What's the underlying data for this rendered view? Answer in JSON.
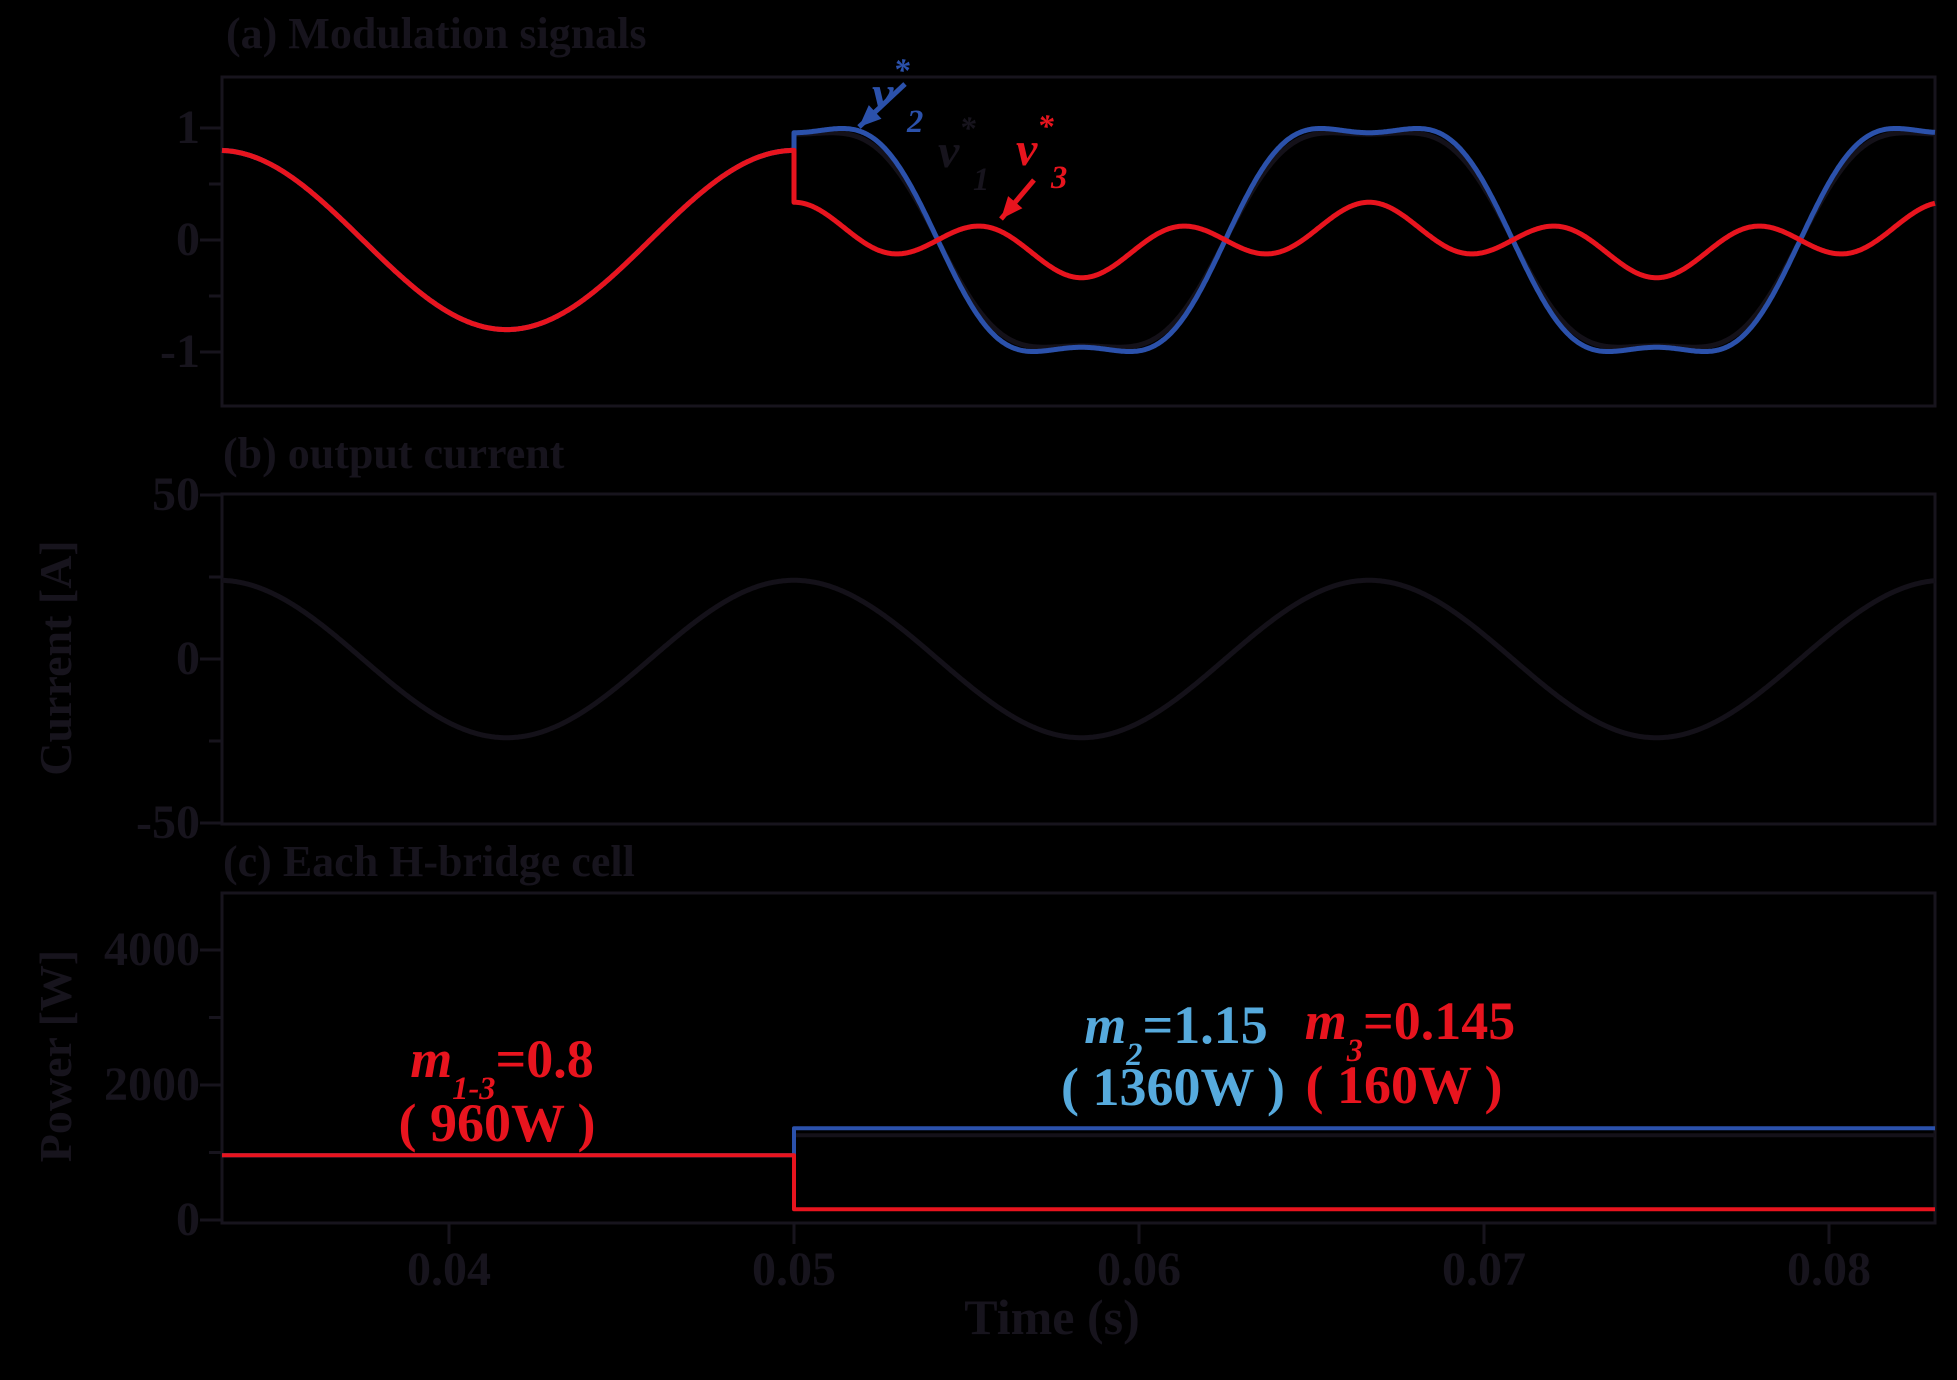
{
  "colors": {
    "background": "#000000",
    "ink": "#17141d",
    "near_black": "#141119",
    "red": "#e8141e",
    "blue": "#2b51ab",
    "light_blue": "#56aadd"
  },
  "panel_a": {
    "title": "(a) Modulation signals",
    "labels": {
      "v2": {
        "base": "v",
        "star": "*",
        "sub": "2"
      },
      "v1": {
        "base": "v",
        "star": "*",
        "sub": "1"
      },
      "v3": {
        "base": "v",
        "star": "*",
        "sub": "3"
      }
    }
  },
  "panel_b": {
    "title": "(b) output current",
    "ylabel": "Current [A]"
  },
  "panel_c": {
    "title": "(c) Each H-bridge cell",
    "ylabel": "Power [W]",
    "xlabel": "Time (s)",
    "ann_m13": {
      "var": "m",
      "sub": "1-3",
      "value": "=0.8",
      "power": "( 960W )"
    },
    "ann_m2": {
      "var": "m",
      "sub": "2",
      "value": "=1.15",
      "power": "( 1360W )"
    },
    "ann_m3": {
      "var": "m",
      "sub": "3",
      "value": "=0.145",
      "power": "( 160W )"
    }
  },
  "chart_data": [
    {
      "id": "modulation_signals",
      "type": "line",
      "title": "(a) Modulation signals",
      "x_axis": {
        "range_s": [
          0.03342,
          0.08307
        ],
        "grid": false
      },
      "y_axis": {
        "range": [
          -1.46,
          1.46
        ],
        "major_ticks": [
          1,
          0,
          -1
        ],
        "tick_labels": [
          "1",
          "0",
          "-1"
        ],
        "minor_ticks": [
          0.5,
          -0.5
        ]
      },
      "fundamental_frequency_hz": 60,
      "step_time_s": 0.05,
      "waveform_model": "v(t) = A*cos(2*pi*60*(t-0.05)) + A3*cos(3*2*pi*60*(t-0.05))",
      "series": [
        {
          "name": "v*1",
          "color": "near-black",
          "before_step": {
            "amplitude": 0.8,
            "third_harmonic": 0
          },
          "after_step": {
            "amplitude": 1.1,
            "third_harmonic": -0.155
          }
        },
        {
          "name": "v*2",
          "color": "blue",
          "before_step": {
            "amplitude": 0.8,
            "third_harmonic": 0
          },
          "after_step": {
            "amplitude": 1.15,
            "third_harmonic": -0.192
          }
        },
        {
          "name": "v*3",
          "color": "red",
          "before_step": {
            "amplitude": 0.8,
            "third_harmonic": 0
          },
          "after_step": {
            "amplitude": 0.145,
            "third_harmonic": 0.192
          }
        }
      ]
    },
    {
      "id": "output_current",
      "type": "line",
      "title": "(b) output current",
      "ylabel": "Current [A]",
      "y_axis": {
        "range": [
          -50.3,
          50.3
        ],
        "major_ticks": [
          50,
          0,
          -50
        ],
        "tick_labels": [
          "50",
          "0",
          "-50"
        ],
        "minor_ticks": [
          25,
          -25
        ]
      },
      "series": [
        {
          "name": "output current",
          "color": "near-black",
          "amplitude_A": 24,
          "frequency_hz": 60,
          "phase": "cosine peaking at t=0.05 s"
        }
      ]
    },
    {
      "id": "cell_power",
      "type": "step-line",
      "title": "(c) Each H-bridge cell",
      "ylabel": "Power [W]",
      "xlabel": "Time (s)",
      "x_ticks": [
        0.04,
        0.05,
        0.06,
        0.07,
        0.08
      ],
      "x_tick_labels": [
        "0.04",
        "0.05",
        "0.06",
        "0.07",
        "0.08"
      ],
      "y_axis": {
        "range": [
          0,
          4840
        ],
        "major_ticks": [
          4000,
          2000,
          0
        ],
        "tick_labels": [
          "4000",
          "2000",
          "0"
        ],
        "minor_ticks": [
          3000,
          1000
        ]
      },
      "step_time_s": 0.05,
      "series": [
        {
          "name": "cell 1",
          "color": "near-black",
          "before_W": 960,
          "after_W": 1360
        },
        {
          "name": "cell 2",
          "color": "blue",
          "before_W": 960,
          "after_W": 1360
        },
        {
          "name": "cell 3",
          "color": "red",
          "before_W": 960,
          "after_W": 160
        }
      ]
    }
  ]
}
